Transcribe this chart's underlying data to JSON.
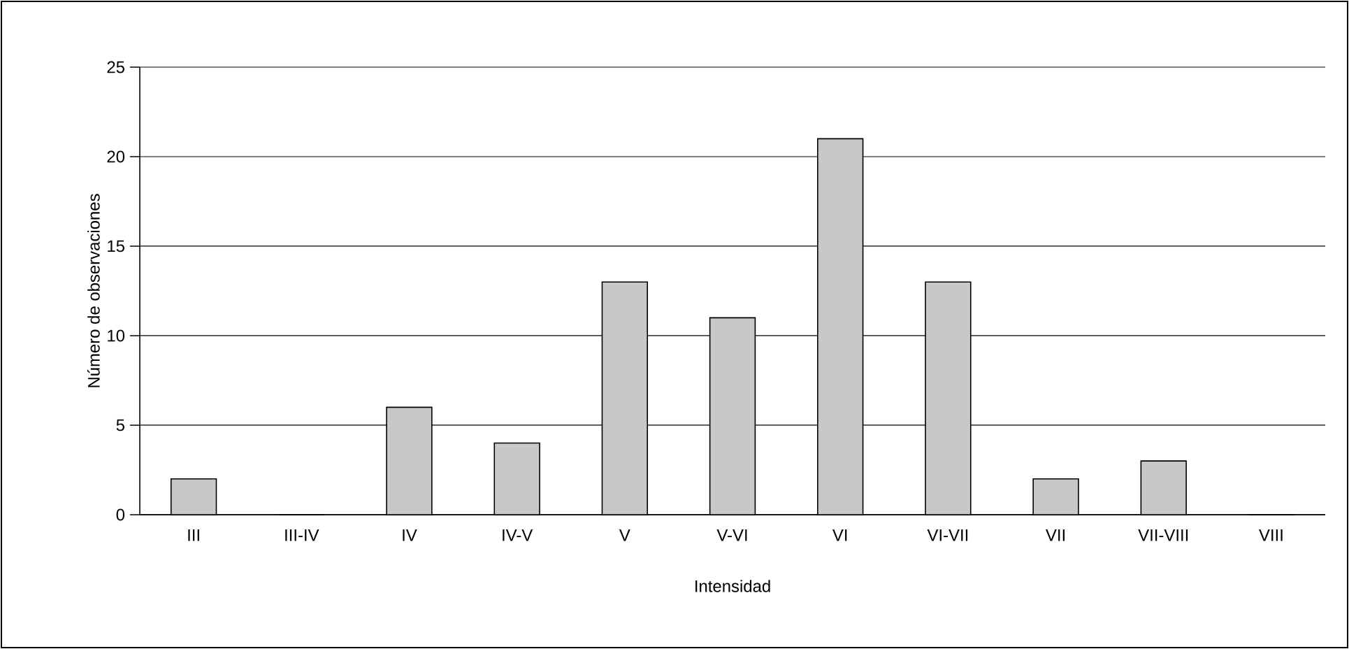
{
  "chart_data": {
    "type": "bar",
    "xlabel": "Intensidad",
    "ylabel": "Número de observaciones",
    "categories": [
      "III",
      "III-IV",
      "IV",
      "IV-V",
      "V",
      "V-VI",
      "VI",
      "VI-VII",
      "VII",
      "VII-VIII",
      "VIII"
    ],
    "values": [
      2,
      0,
      6,
      4,
      13,
      11,
      21,
      13,
      2,
      3,
      0
    ],
    "color": "#c8c8c8",
    "ylim": [
      0,
      25
    ],
    "yticks": [
      0,
      5,
      10,
      15,
      20,
      25
    ],
    "grid": "y"
  }
}
